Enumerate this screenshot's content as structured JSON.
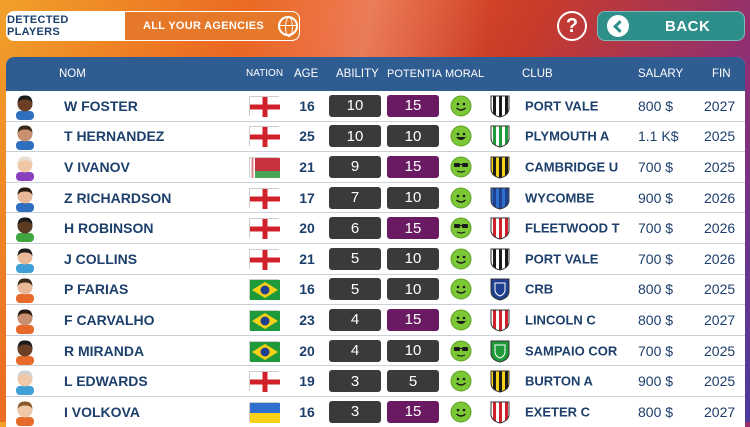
{
  "tabs": {
    "detected": "DETECTED PLAYERS",
    "agencies": "ALL YOUR AGENCIES"
  },
  "help_label": "?",
  "back_label": "BACK",
  "columns": {
    "nom": "NOM",
    "nation": "NATION",
    "age": "AGE",
    "ability": "ABILITY",
    "potential": "POTENTIA",
    "moral": "MORAL",
    "club": "CLUB",
    "salary": "SALARY",
    "fin": "FIN"
  },
  "colors": {
    "accent_orange": "#e6782a",
    "header_blue": "#2f5d92",
    "back_teal": "#2d8e8a",
    "potential_purple": "#6a1a62",
    "ability_gray": "#3a3a3a",
    "moral_green": "#7cc735"
  },
  "players": [
    {
      "name": "W FOSTER",
      "nation": "england",
      "age": "16",
      "ability": "10",
      "potential": "15",
      "potential_color": "purple",
      "moral": "smile",
      "club": "PORT VALE",
      "crest": "black-white-stripes",
      "salary": "800 $",
      "fin": "2027",
      "skin": "#6b3e26",
      "hair": "#1a1a1a",
      "shirt": "#2f6fbf"
    },
    {
      "name": "T HERNANDEZ",
      "nation": "england",
      "age": "25",
      "ability": "10",
      "potential": "10",
      "potential_color": "gray",
      "moral": "happy",
      "club": "PLYMOUTH A",
      "crest": "green-white-stripes",
      "salary": "1.1 K$",
      "fin": "2025",
      "skin": "#c89070",
      "hair": "#3a2a1a",
      "shirt": "#2f6fbf"
    },
    {
      "name": "V IVANOV",
      "nation": "belarus",
      "age": "21",
      "ability": "9",
      "potential": "15",
      "potential_color": "purple",
      "moral": "cool",
      "club": "CAMBRIDGE U",
      "crest": "yellow-black-stripes",
      "salary": "700 $",
      "fin": "2025",
      "skin": "#f0c8a8",
      "hair": "#e8e0d0",
      "shirt": "#8a3fbf"
    },
    {
      "name": "Z RICHARDSON",
      "nation": "england",
      "age": "17",
      "ability": "7",
      "potential": "10",
      "potential_color": "gray",
      "moral": "smile",
      "club": "WYCOMBE",
      "crest": "blue-stripes",
      "salary": "900 $",
      "fin": "2026",
      "skin": "#e8b898",
      "hair": "#2a1a10",
      "shirt": "#2f6fbf"
    },
    {
      "name": "H ROBINSON",
      "nation": "england",
      "age": "20",
      "ability": "6",
      "potential": "15",
      "potential_color": "purple",
      "moral": "cool",
      "club": "FLEETWOOD T",
      "crest": "red-white-stripes",
      "salary": "700 $",
      "fin": "2026",
      "skin": "#5a3a20",
      "hair": "#1a1a1a",
      "shirt": "#3fa63f"
    },
    {
      "name": "J COLLINS",
      "nation": "england",
      "age": "21",
      "ability": "5",
      "potential": "10",
      "potential_color": "gray",
      "moral": "smile",
      "club": "PORT VALE",
      "crest": "black-white-stripes",
      "salary": "700 $",
      "fin": "2026",
      "skin": "#e8b898",
      "hair": "#1a1a1a",
      "shirt": "#3f9fd6"
    },
    {
      "name": "P FARIAS",
      "nation": "brazil",
      "age": "16",
      "ability": "5",
      "potential": "10",
      "potential_color": "gray",
      "moral": "smile",
      "club": "CRB",
      "crest": "blue-shield",
      "salary": "800 $",
      "fin": "2025",
      "skin": "#e8b898",
      "hair": "#3a2a1a",
      "shirt": "#e86a2a"
    },
    {
      "name": "F CARVALHO",
      "nation": "brazil",
      "age": "23",
      "ability": "4",
      "potential": "15",
      "potential_color": "purple",
      "moral": "happy",
      "club": "LINCOLN C",
      "crest": "red-white-stripes",
      "salary": "800 $",
      "fin": "2027",
      "skin": "#c89070",
      "hair": "#2a1a10",
      "shirt": "#e86a2a"
    },
    {
      "name": "R MIRANDA",
      "nation": "brazil",
      "age": "20",
      "ability": "4",
      "potential": "10",
      "potential_color": "gray",
      "moral": "cool",
      "club": "SAMPAIO COR",
      "crest": "green-shield",
      "salary": "700 $",
      "fin": "2025",
      "skin": "#6b3e26",
      "hair": "#1a1a1a",
      "shirt": "#e86a2a"
    },
    {
      "name": "L EDWARDS",
      "nation": "england",
      "age": "19",
      "ability": "3",
      "potential": "5",
      "potential_color": "gray",
      "moral": "smile",
      "club": "BURTON A",
      "crest": "yellow-black-stripes",
      "salary": "900 $",
      "fin": "2025",
      "skin": "#f0c8a8",
      "hair": "#d0d0d0",
      "shirt": "#3f9fd6"
    },
    {
      "name": "I VOLKOVA",
      "nation": "ukraine",
      "age": "16",
      "ability": "3",
      "potential": "15",
      "potential_color": "purple",
      "moral": "smile",
      "club": "EXETER C",
      "crest": "red-white-stripes",
      "salary": "800 $",
      "fin": "2027",
      "skin": "#f0c8a8",
      "hair": "#8a5a2a",
      "shirt": "#e86a2a"
    }
  ]
}
